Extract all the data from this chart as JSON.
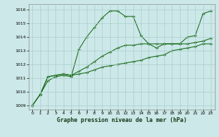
{
  "title": "Graphe pression niveau de la mer (hPa)",
  "xlabel": "Graphe pression niveau de la mer (hPa)",
  "ylim": [
    1008.7,
    1016.4
  ],
  "xlim": [
    -0.5,
    23.5
  ],
  "yticks": [
    1009,
    1010,
    1011,
    1012,
    1013,
    1014,
    1015,
    1016
  ],
  "xticks": [
    0,
    1,
    2,
    3,
    4,
    5,
    6,
    7,
    8,
    9,
    10,
    11,
    12,
    13,
    14,
    15,
    16,
    17,
    18,
    19,
    20,
    21,
    22,
    23
  ],
  "bg_color": "#cce8e8",
  "grid_color": "#aacccc",
  "line_color": "#1a6b1a",
  "series": [
    [
      1009.0,
      1009.8,
      1010.8,
      1011.1,
      1011.2,
      1011.1,
      1013.1,
      1014.0,
      1014.7,
      1015.4,
      1015.9,
      1015.9,
      1015.5,
      1015.5,
      1014.1,
      1013.5,
      1013.2,
      1013.5,
      1013.5,
      1013.5,
      1014.0,
      1014.1,
      1015.7,
      1015.9
    ],
    [
      1009.0,
      1009.8,
      1011.1,
      1011.2,
      1011.3,
      1011.2,
      1011.5,
      1011.8,
      1012.2,
      1012.6,
      1012.9,
      1013.2,
      1013.4,
      1013.4,
      1013.5,
      1013.5,
      1013.5,
      1013.5,
      1013.5,
      1013.5,
      1013.5,
      1013.6,
      1013.7,
      1013.9
    ],
    [
      1009.0,
      1009.8,
      1011.1,
      1011.2,
      1011.3,
      1011.2,
      1011.3,
      1011.4,
      1011.6,
      1011.8,
      1011.9,
      1012.0,
      1012.1,
      1012.2,
      1012.3,
      1012.5,
      1012.6,
      1012.7,
      1013.0,
      1013.1,
      1013.2,
      1013.3,
      1013.5,
      1013.5
    ]
  ],
  "figsize": [
    3.2,
    2.0
  ],
  "dpi": 100
}
